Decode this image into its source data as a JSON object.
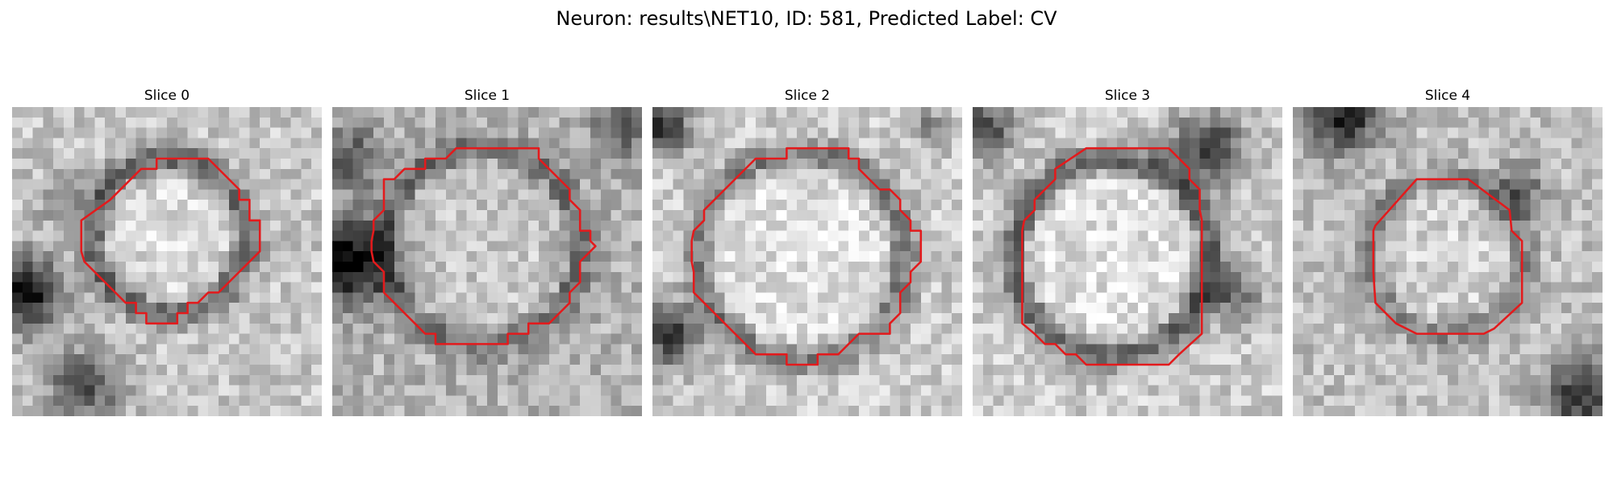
{
  "figure": {
    "title": "Neuron: results\\NET10, ID: 581, Predicted Label: CV"
  },
  "colors": {
    "outline": "#e31a1c",
    "colormap": "grayscale"
  },
  "panels": [
    {
      "title": "Slice 0"
    },
    {
      "title": "Slice 1"
    },
    {
      "title": "Slice 2"
    },
    {
      "title": "Slice 3"
    },
    {
      "title": "Slice 4"
    }
  ]
}
